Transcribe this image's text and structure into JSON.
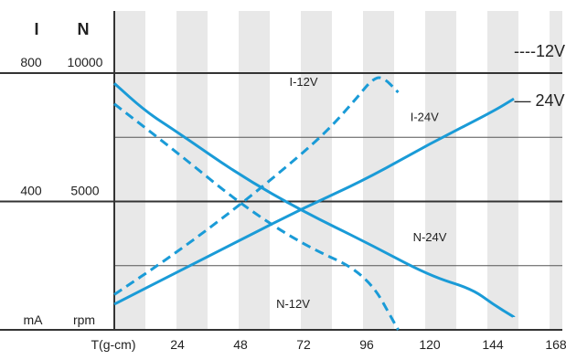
{
  "chart_data": {
    "type": "line",
    "x_unit_label": "T(g-cm)",
    "x_ticks": [
      24,
      48,
      72,
      96,
      120,
      144,
      168
    ],
    "x_range": [
      0,
      168
    ],
    "left_axes": {
      "current": {
        "header": "I",
        "unit": "mA",
        "ticks": [
          400,
          800
        ],
        "range": [
          0,
          800
        ]
      },
      "speed": {
        "header": "N",
        "unit": "rpm",
        "ticks": [
          5000,
          10000
        ],
        "range": [
          0,
          10000
        ]
      }
    },
    "grid": {
      "horizontal_lines": [
        0,
        200,
        400,
        600,
        800
      ],
      "vertical_bands": true
    },
    "legend": [
      {
        "text": "----12V",
        "style": "dashed"
      },
      {
        "text": "— 24V",
        "style": "solid"
      }
    ],
    "series": [
      {
        "name": "I-12V",
        "axis": "current",
        "style": "dashed",
        "x": [
          0,
          20,
          40,
          60,
          80,
          92,
          98,
          102,
          108
        ],
        "y": [
          110,
          220,
          340,
          470,
          610,
          720,
          780,
          790,
          740
        ]
      },
      {
        "name": "I-24V",
        "axis": "current",
        "style": "solid",
        "x": [
          0,
          24,
          48,
          72,
          96,
          120,
          144,
          152
        ],
        "y": [
          80,
          180,
          280,
          380,
          470,
          580,
          680,
          720
        ]
      },
      {
        "name": "N-12V",
        "axis": "speed",
        "style": "dashed",
        "x": [
          0,
          24,
          48,
          72,
          96,
          108
        ],
        "y": [
          8800,
          6900,
          4900,
          3300,
          2200,
          0
        ]
      },
      {
        "name": "N-24V",
        "axis": "speed",
        "style": "solid",
        "x": [
          0,
          12,
          24,
          48,
          72,
          96,
          120,
          136,
          144,
          152
        ],
        "y": [
          9600,
          8500,
          7700,
          6000,
          4600,
          3400,
          2100,
          1600,
          1000,
          500
        ]
      }
    ]
  }
}
